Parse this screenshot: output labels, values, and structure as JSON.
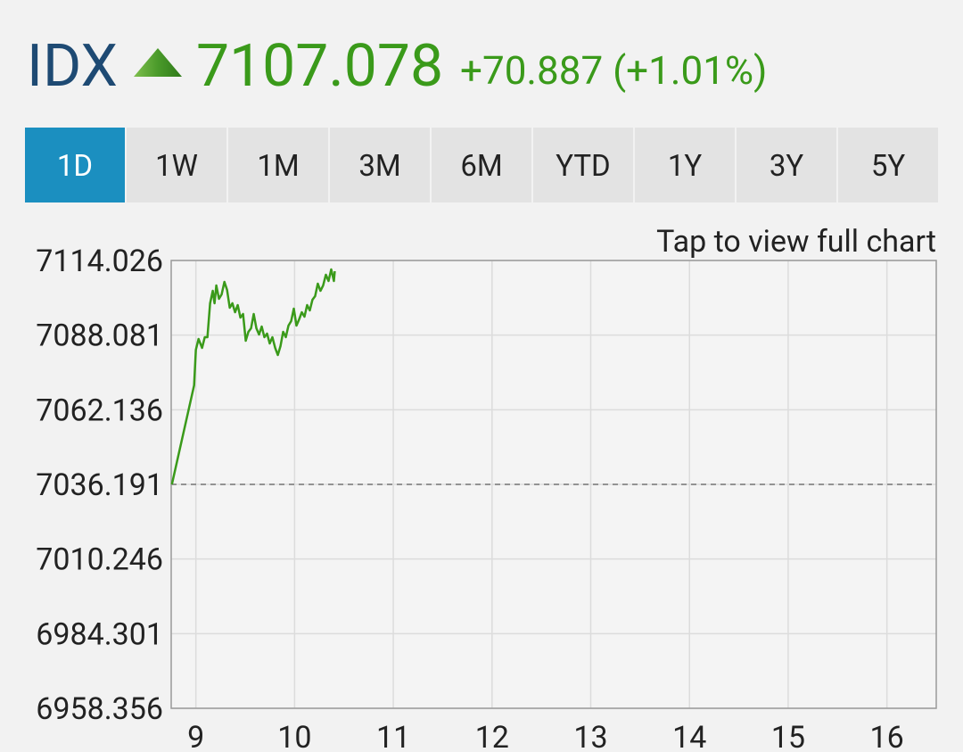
{
  "header": {
    "symbol": "IDX",
    "last": "7107.078",
    "change": "+70.887 (+1.01%)"
  },
  "tabs": {
    "items": [
      "1D",
      "1W",
      "1M",
      "3M",
      "6M",
      "YTD",
      "1Y",
      "3Y",
      "5Y"
    ],
    "active": 0
  },
  "chart_link": "Tap to view full chart",
  "chart_data": {
    "type": "line",
    "x": [
      8.757,
      8.982,
      9.0,
      9.027,
      9.063,
      9.09,
      9.117,
      9.144,
      9.171,
      9.189,
      9.207,
      9.234,
      9.261,
      9.289,
      9.316,
      9.343,
      9.37,
      9.397,
      9.424,
      9.451,
      9.478,
      9.505,
      9.532,
      9.559,
      9.586,
      9.613,
      9.64,
      9.667,
      9.694,
      9.721,
      9.748,
      9.775,
      9.803,
      9.83,
      9.857,
      9.884,
      9.911,
      9.938,
      9.965,
      9.992,
      10.019,
      10.046,
      10.073,
      10.1,
      10.127,
      10.154,
      10.181,
      10.208,
      10.235,
      10.262,
      10.289,
      10.317,
      10.344,
      10.371,
      10.398,
      10.407
    ],
    "values": [
      7036.19,
      7070.61,
      7083.02,
      7086.74,
      7083.64,
      7087.36,
      7087.36,
      7099.14,
      7103.48,
      7099.14,
      7105.34,
      7100.69,
      7102.24,
      7106.58,
      7103.79,
      7097.59,
      7099.14,
      7096.04,
      7098.52,
      7094.18,
      7095.42,
      7086.12,
      7089.22,
      7090.46,
      7095.42,
      7090.46,
      7088.29,
      7091.08,
      7087.36,
      7088.6,
      7085.19,
      7087.36,
      7083.64,
      7081.16,
      7084.26,
      7089.22,
      7087.36,
      7091.39,
      7092.94,
      7097.28,
      7091.39,
      7093.56,
      7096.04,
      7094.49,
      7098.52,
      7096.66,
      7100.39,
      7101.63,
      7105.97,
      7103.48,
      7105.34,
      7109.07,
      7106.9,
      7110.93,
      7106.9,
      7110.31
    ],
    "color": "#3a9a1a",
    "xlim": [
      8.75,
      16.5
    ],
    "xticks": [
      9,
      10,
      11,
      12,
      13,
      14,
      15,
      16
    ],
    "ylim": [
      6958.356,
      7114.026
    ],
    "yticks": [
      6958.356,
      6984.301,
      7010.246,
      7036.191,
      7062.136,
      7088.081,
      7114.026
    ],
    "baseline": 7036.191,
    "grid": true
  }
}
